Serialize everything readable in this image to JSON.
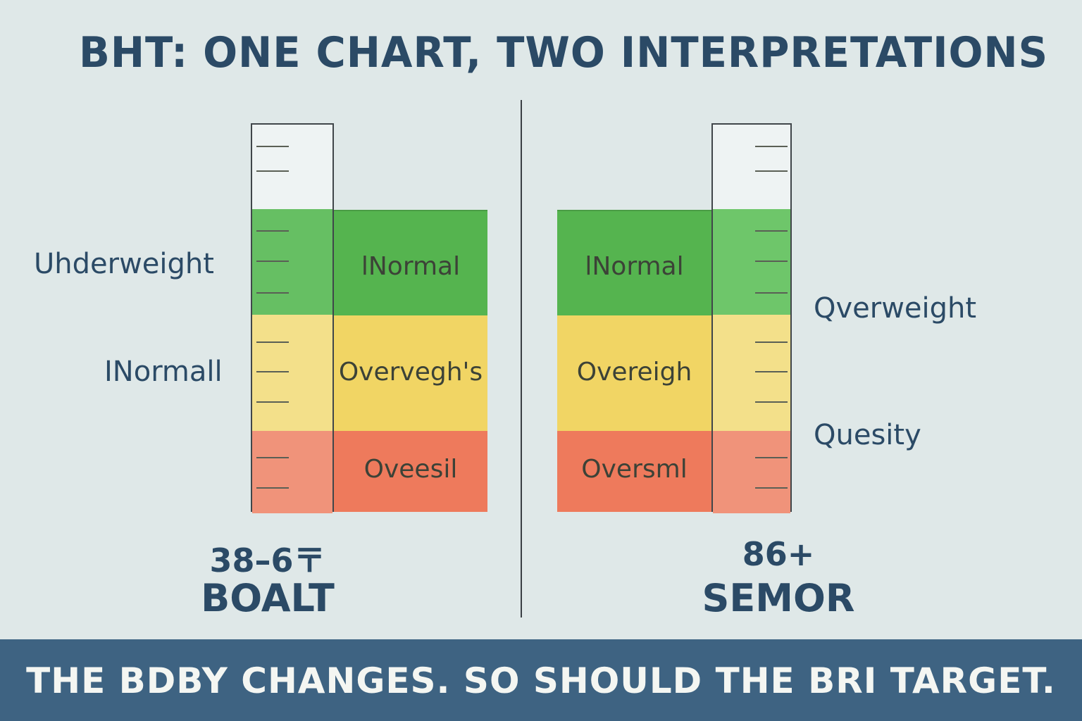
{
  "title": "BHT: ONE CHART, TWO INTERPRETATIONS",
  "left_panel": {
    "side_labels": [
      "Uhderweight",
      "INormall"
    ],
    "bands": [
      "lNormal",
      "Overvegh's",
      "Oveesil"
    ],
    "age_range": "38–6〒",
    "group": "BOALT"
  },
  "right_panel": {
    "side_labels": [
      "Qverweight",
      "Quesity"
    ],
    "bands": [
      "lNormal",
      "Overeigh",
      "Oversml"
    ],
    "age_range": "86+",
    "group": "SEMOR"
  },
  "colors": {
    "background": "#dfe8e8",
    "text": "#2b4a66",
    "green": "#5cb85c",
    "yellow": "#f2d766",
    "red": "#ef7a5e",
    "footer": "#3e6382"
  },
  "footer": "THE BDBY CHANGES. SO SHOULD THE BRI TARGET."
}
